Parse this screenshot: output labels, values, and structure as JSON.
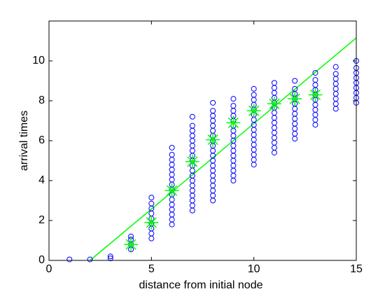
{
  "chart_data": {
    "type": "scatter",
    "x_label": "distance from initial node",
    "y_label": "arrival times",
    "xlim": [
      0,
      15
    ],
    "ylim": [
      0,
      12
    ],
    "xticks": [
      0,
      5,
      10,
      15
    ],
    "yticks": [
      0,
      2,
      4,
      6,
      8,
      10
    ],
    "grid": false,
    "samples": {
      "color": "#0000ff",
      "columns": [
        {
          "x": 1,
          "y": [
            0.05
          ]
        },
        {
          "x": 2,
          "y": [
            0.05
          ]
        },
        {
          "x": 3,
          "y": [
            0.1,
            0.2
          ]
        },
        {
          "x": 4,
          "y": [
            0.55,
            0.8,
            1.05,
            1.2
          ]
        },
        {
          "x": 5,
          "y": [
            1.1,
            1.35,
            1.6,
            1.85,
            2.1,
            2.35,
            2.6,
            2.85,
            3.15
          ]
        },
        {
          "x": 6,
          "y": [
            1.8,
            2.05,
            2.3,
            2.55,
            2.8,
            3.05,
            3.3,
            3.55,
            3.8,
            4.05,
            4.3,
            4.55,
            4.8,
            5.05,
            5.3,
            5.65
          ]
        },
        {
          "x": 7,
          "y": [
            2.5,
            2.75,
            3,
            3.25,
            3.5,
            3.75,
            4,
            4.25,
            4.5,
            4.75,
            5,
            5.25,
            5.5,
            5.75,
            6,
            6.25,
            6.5,
            6.75,
            7.2
          ]
        },
        {
          "x": 8,
          "y": [
            3,
            3.25,
            3.5,
            3.75,
            4,
            4.25,
            4.5,
            4.75,
            5,
            5.25,
            5.5,
            5.75,
            6,
            6.25,
            6.5,
            6.75,
            7,
            7.25,
            7.5,
            7.9
          ]
        },
        {
          "x": 9,
          "y": [
            4,
            4.25,
            4.5,
            4.75,
            5,
            5.25,
            5.5,
            5.75,
            6,
            6.25,
            6.5,
            6.75,
            7,
            7.25,
            7.5,
            7.75,
            8.1
          ]
        },
        {
          "x": 10,
          "y": [
            4.8,
            5.05,
            5.3,
            5.55,
            5.8,
            6.05,
            6.3,
            6.55,
            6.8,
            7.05,
            7.3,
            7.55,
            7.8,
            8.05,
            8.3,
            8.6
          ]
        },
        {
          "x": 11,
          "y": [
            5.4,
            5.65,
            5.9,
            6.15,
            6.4,
            6.65,
            6.9,
            7.15,
            7.4,
            7.65,
            7.9,
            8.15,
            8.4,
            8.65,
            8.9
          ]
        },
        {
          "x": 12,
          "y": [
            6.1,
            6.35,
            6.6,
            6.85,
            7.1,
            7.35,
            7.6,
            7.85,
            8.1,
            8.35,
            8.6,
            9
          ]
        },
        {
          "x": 13,
          "y": [
            6.8,
            7.05,
            7.3,
            7.55,
            7.8,
            8.05,
            8.3,
            8.55,
            8.8,
            9.05,
            9.4
          ]
        },
        {
          "x": 14,
          "y": [
            7.6,
            7.85,
            8.1,
            8.35,
            8.6,
            8.85,
            9.1,
            9.35,
            9.7
          ]
        },
        {
          "x": 15,
          "y": [
            7.9,
            8.15,
            8.4,
            8.65,
            8.9,
            9.15,
            9.4,
            9.65,
            10
          ]
        }
      ]
    },
    "means": {
      "color": "#00ff00",
      "x": [
        4,
        5,
        6,
        7,
        8,
        9,
        10,
        11,
        12,
        13
      ],
      "y": [
        0.8,
        1.9,
        3.5,
        4.95,
        6.05,
        6.9,
        7.5,
        7.85,
        8.1,
        8.3
      ]
    },
    "fit": {
      "color": "#00ff00",
      "x": [
        2,
        15
      ],
      "y": [
        0,
        11.15
      ]
    }
  }
}
